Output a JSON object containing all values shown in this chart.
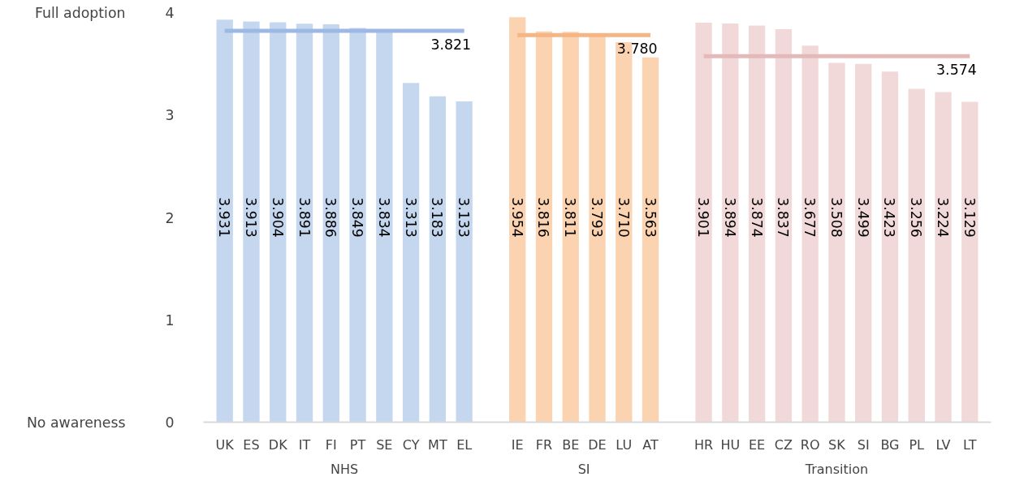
{
  "chart_data": {
    "type": "bar",
    "categories": [
      "UK",
      "ES",
      "DK",
      "IT",
      "FI",
      "PT",
      "SE",
      "CY",
      "MT",
      "EL",
      null,
      "IE",
      "FR",
      "BE",
      "DE",
      "LU",
      "AT",
      null,
      "HR",
      "HU",
      "EE",
      "CZ",
      "RO",
      "SK",
      "SI",
      "BG",
      "PL",
      "LV",
      "LT"
    ],
    "values": [
      3.931,
      3.913,
      3.904,
      3.891,
      3.886,
      3.849,
      3.834,
      3.313,
      3.183,
      3.133,
      null,
      3.954,
      3.816,
      3.811,
      3.793,
      3.71,
      3.563,
      null,
      3.901,
      3.894,
      3.874,
      3.837,
      3.677,
      3.508,
      3.499,
      3.423,
      3.256,
      3.224,
      3.129
    ],
    "colors": [
      "#c5d7ef",
      "#c5d7ef",
      "#c5d7ef",
      "#c5d7ef",
      "#c5d7ef",
      "#c5d7ef",
      "#c5d7ef",
      "#c5d7ef",
      "#c5d7ef",
      "#c5d7ef",
      null,
      "#fbd3b0",
      "#fbd3b0",
      "#fbd3b0",
      "#fbd3b0",
      "#fbd3b0",
      "#fbd3b0",
      null,
      "#f2d9d9",
      "#f2d9d9",
      "#f2d9d9",
      "#f2d9d9",
      "#f2d9d9",
      "#f2d9d9",
      "#f2d9d9",
      "#f2d9d9",
      "#f2d9d9",
      "#f2d9d9",
      "#f2d9d9"
    ],
    "value_labels": [
      "3.931",
      "3.913",
      "3.904",
      "3.891",
      "3.886",
      "3.849",
      "3.834",
      "3.313",
      "3.183",
      "3.133",
      null,
      "3.954",
      "3.816",
      "3.811",
      "3.793",
      "3.710",
      "3.563",
      null,
      "3.901",
      "3.894",
      "3.874",
      "3.837",
      "3.677",
      "3.508",
      "3.499",
      "3.423",
      "3.256",
      "3.224",
      "3.129"
    ],
    "series": [
      {
        "type": "line",
        "color": "#9db8e4",
        "values": [
          3.821,
          3.821,
          3.821,
          3.821,
          3.821,
          3.821,
          3.821,
          3.821,
          3.821,
          3.821,
          null,
          null,
          null,
          null,
          null,
          null,
          null,
          null,
          null,
          null,
          null,
          null,
          null,
          null,
          null,
          null,
          null,
          null,
          null
        ],
        "value_labels": [
          null,
          null,
          null,
          null,
          null,
          null,
          null,
          null,
          "3.821",
          null,
          null,
          null,
          null,
          null,
          null,
          null,
          null,
          null,
          null,
          null,
          null,
          null,
          null,
          null,
          null,
          null,
          null,
          null,
          null
        ]
      },
      {
        "type": "line",
        "color": "#f5b584",
        "values": [
          null,
          null,
          null,
          null,
          null,
          null,
          null,
          null,
          null,
          null,
          null,
          3.78,
          3.78,
          3.78,
          3.78,
          3.78,
          3.78,
          null,
          null,
          null,
          null,
          null,
          null,
          null,
          null,
          null,
          null,
          null,
          null
        ],
        "value_labels": [
          null,
          null,
          null,
          null,
          null,
          null,
          null,
          null,
          null,
          null,
          null,
          null,
          null,
          null,
          null,
          "3.780",
          null,
          null,
          null,
          null,
          null,
          null,
          null,
          null,
          null,
          null,
          null,
          null,
          null
        ]
      },
      {
        "type": "line",
        "color": "#e3b9b9",
        "values": [
          null,
          null,
          null,
          null,
          null,
          null,
          null,
          null,
          null,
          null,
          null,
          null,
          null,
          null,
          null,
          null,
          null,
          null,
          3.574,
          3.574,
          3.574,
          3.574,
          3.574,
          3.574,
          3.574,
          3.574,
          3.574,
          3.574,
          3.574
        ],
        "value_labels": [
          null,
          null,
          null,
          null,
          null,
          null,
          null,
          null,
          null,
          null,
          null,
          null,
          null,
          null,
          null,
          null,
          null,
          null,
          null,
          null,
          null,
          null,
          null,
          null,
          null,
          null,
          null,
          "3.574",
          null
        ]
      }
    ],
    "ylim": [
      0,
      4
    ],
    "yticks": [
      0,
      1,
      2,
      3,
      4
    ],
    "grid": false,
    "annotations": [
      "NHS",
      "SI",
      "Transition",
      "Full adoption",
      "No awareness"
    ]
  }
}
